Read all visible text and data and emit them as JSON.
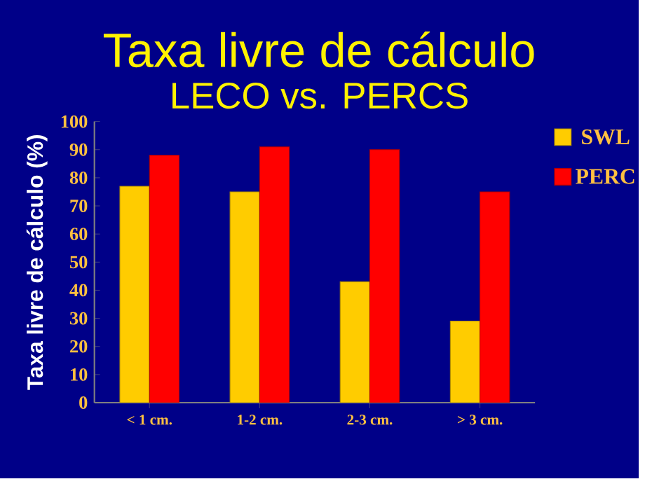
{
  "chart_data": {
    "type": "bar",
    "title": "Taxa livre de cálculo",
    "subtitle": "LECO vs. PERCS",
    "ylabel": "Taxa livre de cálculo (%)",
    "categories": [
      "< 1 cm.",
      "1-2 cm.",
      "2-3 cm.",
      "> 3 cm."
    ],
    "series": [
      {
        "name": "SWL",
        "color": "#ffcc00",
        "values": [
          77,
          75,
          43,
          29
        ]
      },
      {
        "name": "PERC",
        "color": "#ff0000",
        "values": [
          88,
          91,
          90,
          75
        ]
      }
    ],
    "ylim": [
      0,
      100
    ],
    "yticks": [
      0,
      10,
      20,
      30,
      40,
      50,
      60,
      70,
      80,
      90,
      100
    ],
    "grid": false,
    "legend": "right"
  }
}
